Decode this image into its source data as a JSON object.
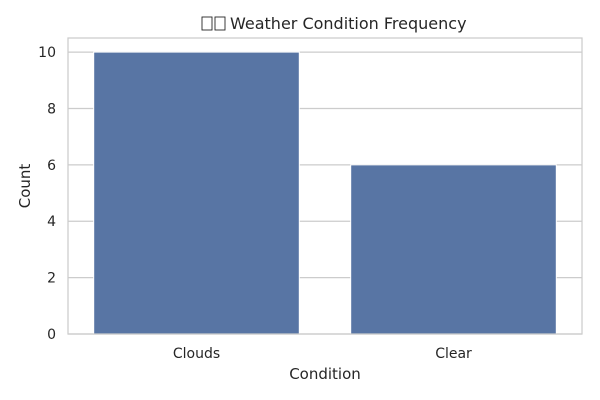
{
  "chart_data": {
    "type": "bar",
    "title": "Weather Condition Frequency",
    "title_prefix_glyphs": "□□",
    "xlabel": "Condition",
    "ylabel": "Count",
    "categories": [
      "Clouds",
      "Clear"
    ],
    "values": [
      10,
      6
    ],
    "ylim": [
      0,
      10.5
    ],
    "yticks": [
      0,
      2,
      4,
      6,
      8,
      10
    ],
    "grid": true,
    "bar_color": "#5875a4",
    "grid_color": "#cccccc",
    "legend": "none"
  }
}
